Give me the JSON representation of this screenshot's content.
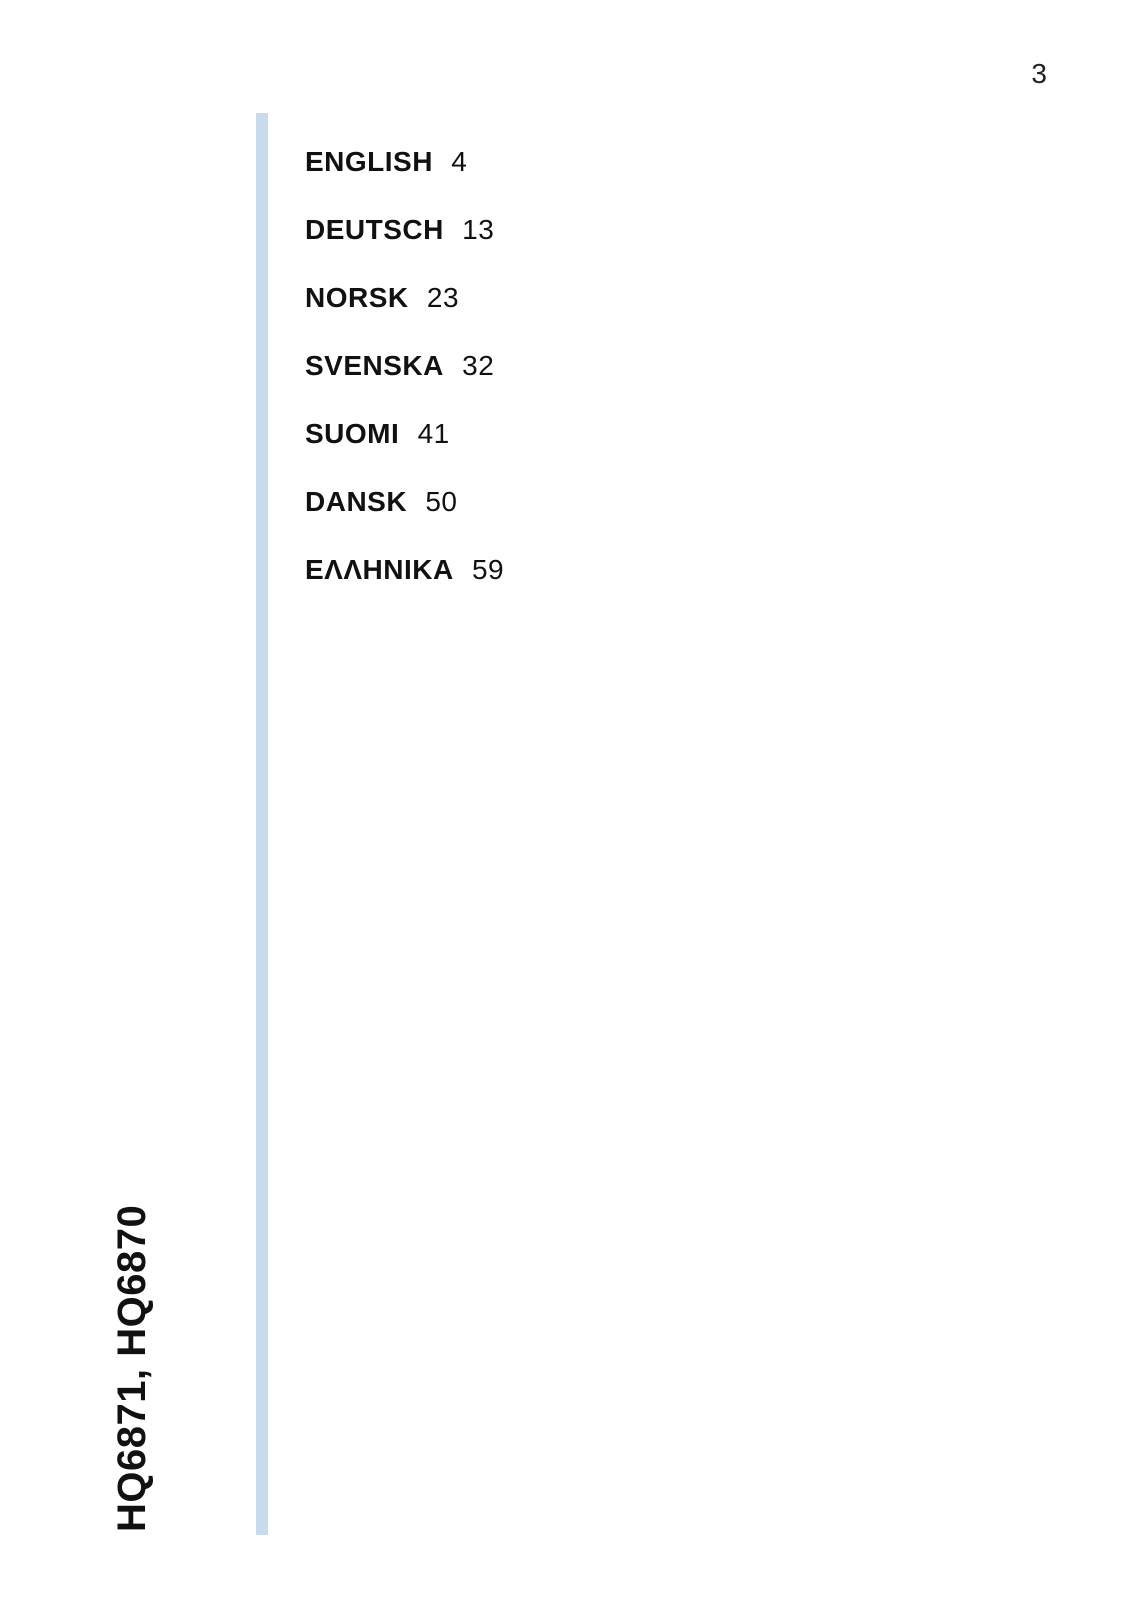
{
  "page_number": "3",
  "spine_title": "HQ6871, HQ6870",
  "divider_color": "#c7dbed",
  "toc": [
    {
      "language": "ENGLISH",
      "page": "4"
    },
    {
      "language": "DEUTSCH",
      "page": "13"
    },
    {
      "language": "NORSK",
      "page": "23"
    },
    {
      "language": "SVENSKA",
      "page": "32"
    },
    {
      "language": "SUOMI",
      "page": "41"
    },
    {
      "language": "DANSK",
      "page": "50"
    },
    {
      "language": "ΕΛΛΗΝΙΚΑ",
      "page": "59"
    }
  ]
}
